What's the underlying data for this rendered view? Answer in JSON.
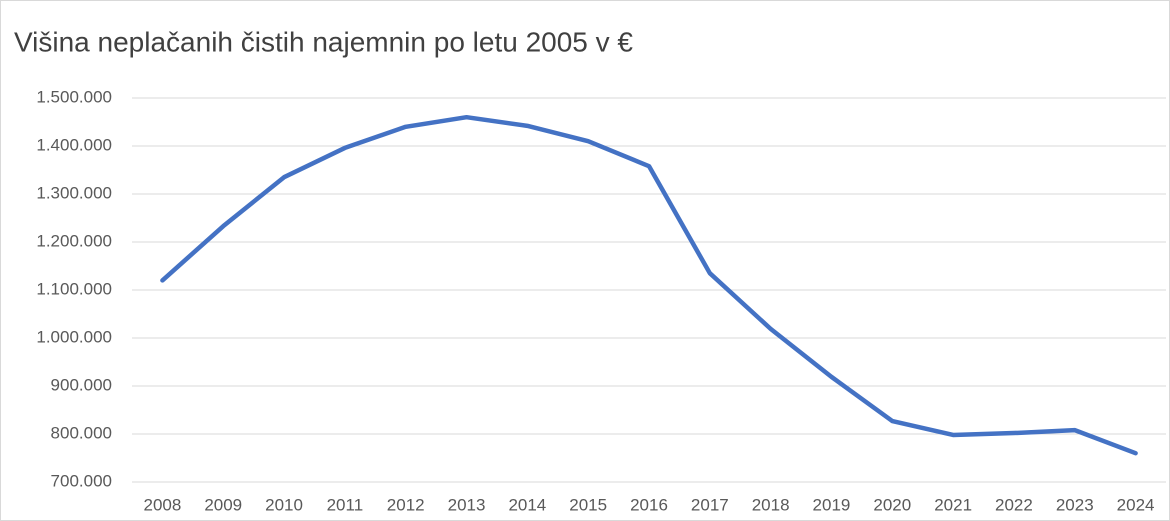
{
  "chart_data": {
    "type": "line",
    "title": "Višina neplačanih čistih najemnin po letu 2005 v €",
    "categories": [
      "2008",
      "2009",
      "2010",
      "2011",
      "2012",
      "2013",
      "2014",
      "2015",
      "2016",
      "2017",
      "2018",
      "2019",
      "2020",
      "2021",
      "2022",
      "2023",
      "2024"
    ],
    "series": [
      {
        "color": "#4472c4",
        "values": [
          1120000,
          1233000,
          1335000,
          1396000,
          1440000,
          1460000,
          1442000,
          1410000,
          1358000,
          1135000,
          1019000,
          919000,
          827000,
          798000,
          802000,
          808000,
          760000
        ]
      }
    ],
    "ylim": [
      700000,
      1500000
    ],
    "yticks": [
      {
        "value": 700000,
        "label": "700.000"
      },
      {
        "value": 800000,
        "label": "800.000"
      },
      {
        "value": 900000,
        "label": "900.000"
      },
      {
        "value": 1000000,
        "label": "1.000.000"
      },
      {
        "value": 1100000,
        "label": "1.100.000"
      },
      {
        "value": 1200000,
        "label": "1.200.000"
      },
      {
        "value": 1300000,
        "label": "1.300.000"
      },
      {
        "value": 1400000,
        "label": "1.400.000"
      },
      {
        "value": 1500000,
        "label": "1.500.000"
      }
    ],
    "grid": true
  }
}
